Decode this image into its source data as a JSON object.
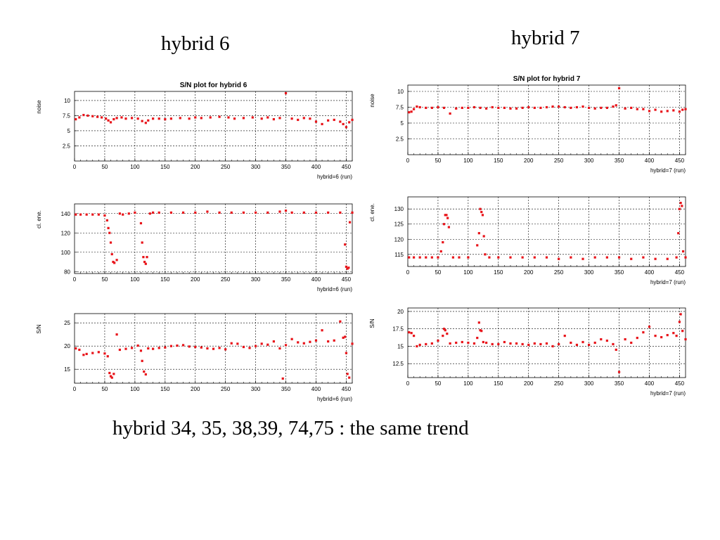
{
  "headings": {
    "left": "hybrid 6",
    "right": "hybrid 7",
    "footer": "hybrid 34, 35, 38,39, 74,75 : the same trend"
  },
  "colors": {
    "points": "#e8141a",
    "axis": "#000000",
    "background": "#ffffff"
  },
  "chart_data": [
    {
      "type": "scatter",
      "title": "S/N plot for hybrid 6",
      "ylabel": "noise",
      "xlabel": "hybrid=6 (run)",
      "xlim": [
        0,
        460
      ],
      "ylim": [
        0,
        11.5
      ],
      "xticks": [
        0,
        50,
        100,
        150,
        200,
        250,
        300,
        350,
        400,
        450
      ],
      "yticks": [
        2.5,
        5,
        7.5,
        10
      ],
      "ytick_labels": [
        "2.5",
        "5",
        "7.5",
        "10"
      ],
      "grid": true,
      "series": [
        {
          "x": [
            2,
            8,
            15,
            22,
            30,
            38,
            45,
            52,
            56,
            60,
            65,
            70,
            78,
            85,
            95,
            105,
            112,
            118,
            122,
            130,
            140,
            150,
            160,
            175,
            190,
            200,
            210,
            225,
            240,
            255,
            265,
            280,
            295,
            310,
            320,
            330,
            340,
            350,
            360,
            370,
            380,
            390,
            400,
            410,
            420,
            430,
            440,
            445,
            450,
            455,
            460
          ],
          "y": [
            6.9,
            7.2,
            7.6,
            7.5,
            7.4,
            7.3,
            7.2,
            7.0,
            6.7,
            6.4,
            6.9,
            7.1,
            7.2,
            7.0,
            7.1,
            7.0,
            6.6,
            6.3,
            6.7,
            7.0,
            7.0,
            6.9,
            7.0,
            7.1,
            7.0,
            7.2,
            7.1,
            7.2,
            7.3,
            7.2,
            7.0,
            7.1,
            7.2,
            7.0,
            7.2,
            6.9,
            7.1,
            11.2,
            7.0,
            6.8,
            7.1,
            7.0,
            6.5,
            6.1,
            6.7,
            6.8,
            6.5,
            6.1,
            5.6,
            6.4,
            6.8
          ]
        }
      ]
    },
    {
      "type": "scatter",
      "title": "",
      "ylabel": "cl. ene.",
      "xlabel": "hybrid=6 (run)",
      "xlim": [
        0,
        460
      ],
      "ylim": [
        78,
        150
      ],
      "xticks": [
        0,
        50,
        100,
        150,
        200,
        250,
        300,
        350,
        400,
        450
      ],
      "yticks": [
        80,
        100,
        120,
        140
      ],
      "ytick_labels": [
        "80",
        "100",
        "120",
        "140"
      ],
      "grid": true,
      "series": [
        {
          "x": [
            2,
            10,
            20,
            30,
            40,
            50,
            54,
            56,
            58,
            60,
            62,
            64,
            66,
            70,
            75,
            80,
            90,
            100,
            110,
            112,
            114,
            116,
            118,
            120,
            125,
            130,
            140,
            160,
            180,
            200,
            220,
            240,
            260,
            280,
            300,
            320,
            340,
            350,
            360,
            380,
            400,
            420,
            440,
            448,
            450,
            452,
            454,
            456,
            460
          ],
          "y": [
            139,
            139,
            139,
            139,
            139,
            138,
            133,
            125,
            120,
            110,
            98,
            90,
            89,
            92,
            140,
            139,
            140,
            141,
            130,
            110,
            95,
            90,
            88,
            95,
            140,
            141,
            141,
            141,
            141,
            141,
            142,
            141,
            141,
            141,
            141,
            141,
            142,
            143,
            141,
            141,
            141,
            141,
            141,
            108,
            85,
            83,
            84,
            131,
            141
          ]
        }
      ]
    },
    {
      "type": "scatter",
      "title": "",
      "ylabel": "S/N",
      "xlabel": "hybrid=6 (run)",
      "xlim": [
        0,
        460
      ],
      "ylim": [
        12,
        27
      ],
      "xticks": [
        0,
        50,
        100,
        150,
        200,
        250,
        300,
        350,
        400,
        450
      ],
      "yticks": [
        15,
        20,
        25
      ],
      "ytick_labels": [
        "15",
        "20",
        "25"
      ],
      "grid": true,
      "series": [
        {
          "x": [
            2,
            8,
            15,
            20,
            30,
            40,
            50,
            55,
            58,
            60,
            62,
            65,
            70,
            75,
            85,
            95,
            105,
            110,
            112,
            115,
            118,
            122,
            130,
            140,
            150,
            160,
            170,
            180,
            190,
            200,
            210,
            220,
            230,
            240,
            250,
            260,
            270,
            280,
            290,
            300,
            310,
            320,
            330,
            340,
            345,
            350,
            360,
            370,
            380,
            390,
            400,
            410,
            420,
            430,
            440,
            445,
            448,
            450,
            452,
            455,
            460
          ],
          "y": [
            19.5,
            19.2,
            18.1,
            18.3,
            18.5,
            18.7,
            18.4,
            17.8,
            14.2,
            13.5,
            13.2,
            14.0,
            22.5,
            19.2,
            19.4,
            19.6,
            20.1,
            19.0,
            16.8,
            14.5,
            13.9,
            19.5,
            19.4,
            19.6,
            19.7,
            20.0,
            20.1,
            20.2,
            19.9,
            19.8,
            19.7,
            19.5,
            19.4,
            19.6,
            19.3,
            20.6,
            20.5,
            19.8,
            19.6,
            20.0,
            20.5,
            20.3,
            21.0,
            19.5,
            13.0,
            20.2,
            21.5,
            20.8,
            20.6,
            20.9,
            21.2,
            23.4,
            21.0,
            21.2,
            25.3,
            21.8,
            22.0,
            18.5,
            14.0,
            13.2,
            20.5
          ]
        }
      ]
    },
    {
      "type": "scatter",
      "title": "S/N plot for hybrid 7",
      "ylabel": "noise",
      "xlabel": "hybrid=7 (run)",
      "xlim": [
        0,
        460
      ],
      "ylim": [
        0,
        11
      ],
      "xticks": [
        0,
        50,
        100,
        150,
        200,
        250,
        300,
        350,
        400,
        450
      ],
      "yticks": [
        2.5,
        5,
        7.5,
        10
      ],
      "ytick_labels": [
        "2.5",
        "5",
        "7.5",
        "10"
      ],
      "grid": true,
      "series": [
        {
          "x": [
            2,
            6,
            10,
            15,
            20,
            30,
            40,
            50,
            60,
            70,
            80,
            90,
            100,
            110,
            120,
            130,
            140,
            150,
            160,
            170,
            180,
            190,
            200,
            210,
            220,
            230,
            240,
            250,
            260,
            270,
            280,
            290,
            300,
            310,
            320,
            330,
            340,
            345,
            350,
            360,
            370,
            380,
            390,
            400,
            410,
            420,
            430,
            440,
            450,
            455,
            460
          ],
          "y": [
            6.7,
            6.8,
            7.2,
            7.6,
            7.5,
            7.4,
            7.4,
            7.5,
            7.4,
            6.5,
            7.3,
            7.4,
            7.4,
            7.5,
            7.4,
            7.3,
            7.5,
            7.4,
            7.4,
            7.3,
            7.3,
            7.4,
            7.5,
            7.4,
            7.4,
            7.5,
            7.6,
            7.6,
            7.5,
            7.4,
            7.5,
            7.6,
            7.4,
            7.3,
            7.4,
            7.4,
            7.6,
            7.8,
            10.5,
            7.3,
            7.4,
            7.2,
            7.2,
            6.9,
            7.1,
            6.8,
            6.9,
            7.0,
            6.8,
            7.1,
            7.2
          ]
        }
      ]
    },
    {
      "type": "scatter",
      "title": "",
      "ylabel": "cl. ene.",
      "xlabel": "hybrid=7 (run)",
      "xlim": [
        0,
        460
      ],
      "ylim": [
        111,
        134
      ],
      "xticks": [
        0,
        50,
        100,
        150,
        200,
        250,
        300,
        350,
        400,
        450
      ],
      "yticks": [
        115,
        120,
        125,
        130
      ],
      "ytick_labels": [
        "115",
        "120",
        "125",
        "130"
      ],
      "grid": true,
      "series": [
        {
          "x": [
            2,
            10,
            20,
            30,
            40,
            50,
            55,
            58,
            60,
            62,
            64,
            66,
            68,
            75,
            85,
            100,
            115,
            118,
            120,
            122,
            124,
            126,
            128,
            135,
            150,
            170,
            190,
            210,
            230,
            250,
            270,
            290,
            310,
            330,
            350,
            370,
            390,
            410,
            430,
            445,
            448,
            450,
            452,
            454,
            456,
            460
          ],
          "y": [
            114,
            114,
            114,
            114,
            114,
            114,
            116,
            119,
            125,
            128,
            128,
            127,
            124,
            114,
            114,
            114,
            118,
            122,
            130,
            129,
            128,
            121,
            115,
            114,
            114,
            114,
            114,
            114,
            114,
            113.5,
            114,
            113.5,
            114,
            114,
            114,
            113.5,
            114,
            113.5,
            113.5,
            114,
            122,
            130,
            132,
            131,
            116,
            114
          ]
        }
      ]
    },
    {
      "type": "scatter",
      "title": "",
      "ylabel": "S/N",
      "xlabel": "hybrid=7 (run)",
      "xlim": [
        0,
        460
      ],
      "ylim": [
        10.5,
        20.5
      ],
      "xticks": [
        0,
        50,
        100,
        150,
        200,
        250,
        300,
        350,
        400,
        450
      ],
      "yticks": [
        12.5,
        15,
        17.5,
        20
      ],
      "ytick_labels": [
        "12.5",
        "15",
        "17.5",
        "20"
      ],
      "grid": true,
      "series": [
        {
          "x": [
            2,
            6,
            10,
            15,
            20,
            30,
            40,
            50,
            58,
            60,
            62,
            65,
            70,
            80,
            90,
            100,
            110,
            115,
            118,
            120,
            122,
            125,
            130,
            140,
            150,
            160,
            170,
            180,
            190,
            200,
            210,
            220,
            230,
            240,
            250,
            260,
            270,
            280,
            290,
            300,
            310,
            320,
            330,
            340,
            345,
            350,
            360,
            370,
            380,
            390,
            400,
            410,
            420,
            430,
            440,
            445,
            450,
            452,
            455,
            460
          ],
          "y": [
            17.0,
            16.9,
            16.5,
            15.0,
            15.2,
            15.3,
            15.4,
            15.8,
            16.5,
            17.5,
            17.3,
            16.8,
            15.4,
            15.5,
            15.6,
            15.5,
            15.4,
            16.2,
            18.4,
            17.3,
            17.2,
            15.6,
            15.5,
            15.3,
            15.3,
            15.6,
            15.4,
            15.4,
            15.3,
            15.2,
            15.4,
            15.3,
            15.4,
            15.0,
            15.3,
            16.5,
            15.5,
            15.2,
            15.6,
            15.2,
            15.5,
            16.0,
            15.8,
            15.3,
            14.5,
            11.3,
            16.0,
            15.5,
            16.2,
            17.0,
            17.8,
            16.5,
            16.3,
            16.6,
            16.9,
            16.5,
            18.5,
            19.6,
            17.2,
            16.0
          ]
        }
      ]
    }
  ]
}
